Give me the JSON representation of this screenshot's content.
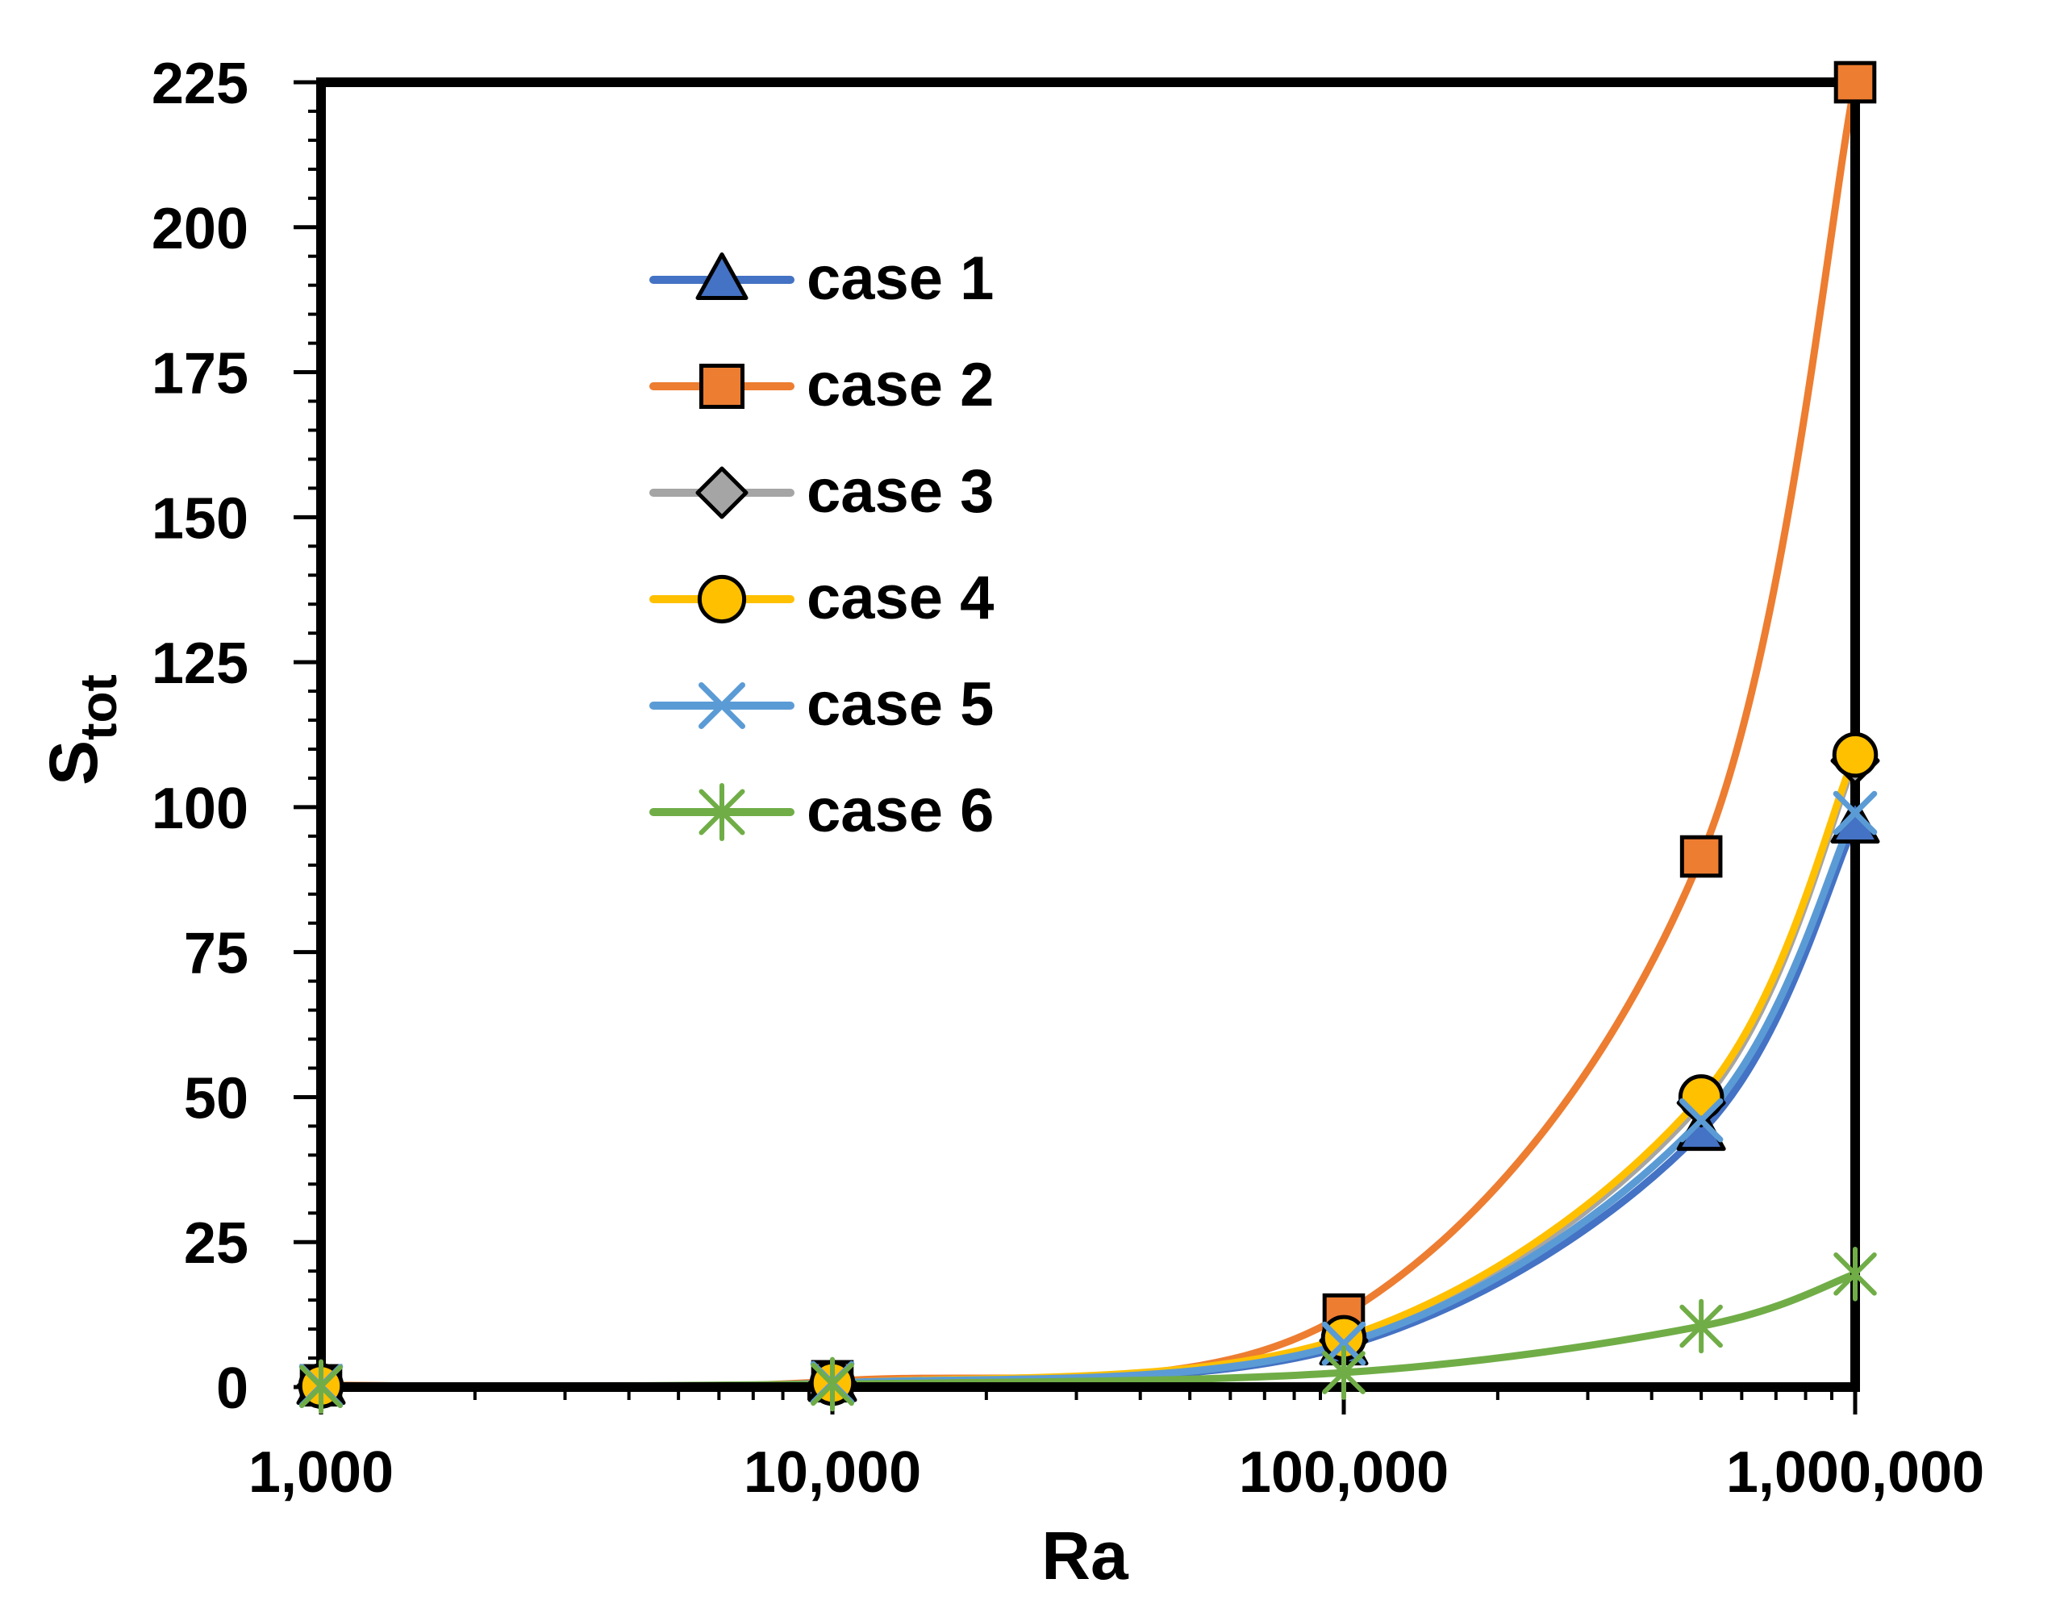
{
  "chart_data": {
    "type": "line",
    "title": "",
    "xlabel": "Ra",
    "ylabel": "S",
    "ylabel_subscript": "tot",
    "x_scale": "log",
    "xlim": [
      1000,
      1000000
    ],
    "ylim": [
      0,
      225
    ],
    "x_ticks": [
      1000,
      10000,
      100000,
      1000000
    ],
    "x_tick_labels": [
      "1,000",
      "10,000",
      "100,000",
      "1,000,000"
    ],
    "y_ticks": [
      0,
      25,
      50,
      75,
      100,
      125,
      150,
      175,
      200,
      225
    ],
    "y_tick_labels": [
      "0",
      "25",
      "50",
      "75",
      "100",
      "125",
      "150",
      "175",
      "200",
      "225"
    ],
    "grid": false,
    "legend_position": "upper-left",
    "x": [
      1000,
      10000,
      100000,
      500000,
      1000000
    ],
    "series": [
      {
        "name": "case 1",
        "color": "#4472C4",
        "marker": "triangle",
        "values": [
          0.2,
          0.7,
          7,
          44,
          97
        ]
      },
      {
        "name": "case 2",
        "color": "#ED7D31",
        "marker": "square",
        "values": [
          0.3,
          1.0,
          12.5,
          91.5,
          225
        ]
      },
      {
        "name": "case 3",
        "color": "#A5A5A5",
        "marker": "diamond",
        "values": [
          0.2,
          0.7,
          8,
          49,
          108
        ]
      },
      {
        "name": "case 4",
        "color": "#FFC000",
        "marker": "circle",
        "values": [
          0.2,
          0.7,
          8.5,
          50,
          109
        ]
      },
      {
        "name": "case 5",
        "color": "#5B9BD5",
        "marker": "x",
        "values": [
          0.2,
          0.7,
          7.5,
          46,
          99
        ]
      },
      {
        "name": "case 6",
        "color": "#70AD47",
        "marker": "asterisk",
        "values": [
          0.1,
          0.5,
          2.5,
          10.5,
          19.5
        ]
      }
    ]
  }
}
